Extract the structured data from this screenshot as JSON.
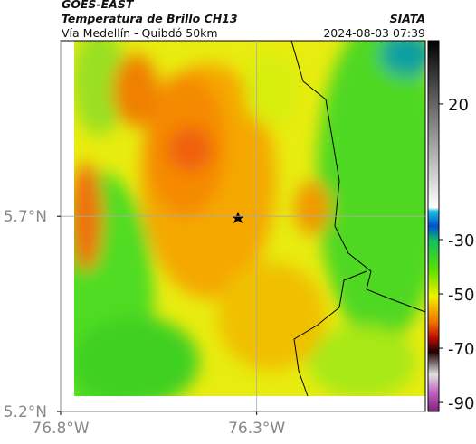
{
  "header": {
    "source": "GOES-EAST",
    "product": "Temperatura de Brillo CH13",
    "route": "Vía Medellín - Quibdó 50km",
    "agency": "SIATA",
    "timestamp": "2024-08-03 07:39"
  },
  "map": {
    "xlim": [
      -76.8,
      -75.87
    ],
    "ylim": [
      5.2,
      6.15
    ],
    "xticks": [
      {
        "value": -76.8,
        "label": "76.8°W"
      },
      {
        "value": -76.3,
        "label": "76.3°W"
      }
    ],
    "yticks": [
      {
        "value": 5.7,
        "label": "5.7°N"
      },
      {
        "value": 5.2,
        "label": "5.2°N"
      }
    ],
    "grid": true
  },
  "colorbar": {
    "clim": [
      -93.3,
      43.3
    ],
    "ticks": [
      20,
      -30,
      -50,
      -70,
      -90
    ]
  }
}
